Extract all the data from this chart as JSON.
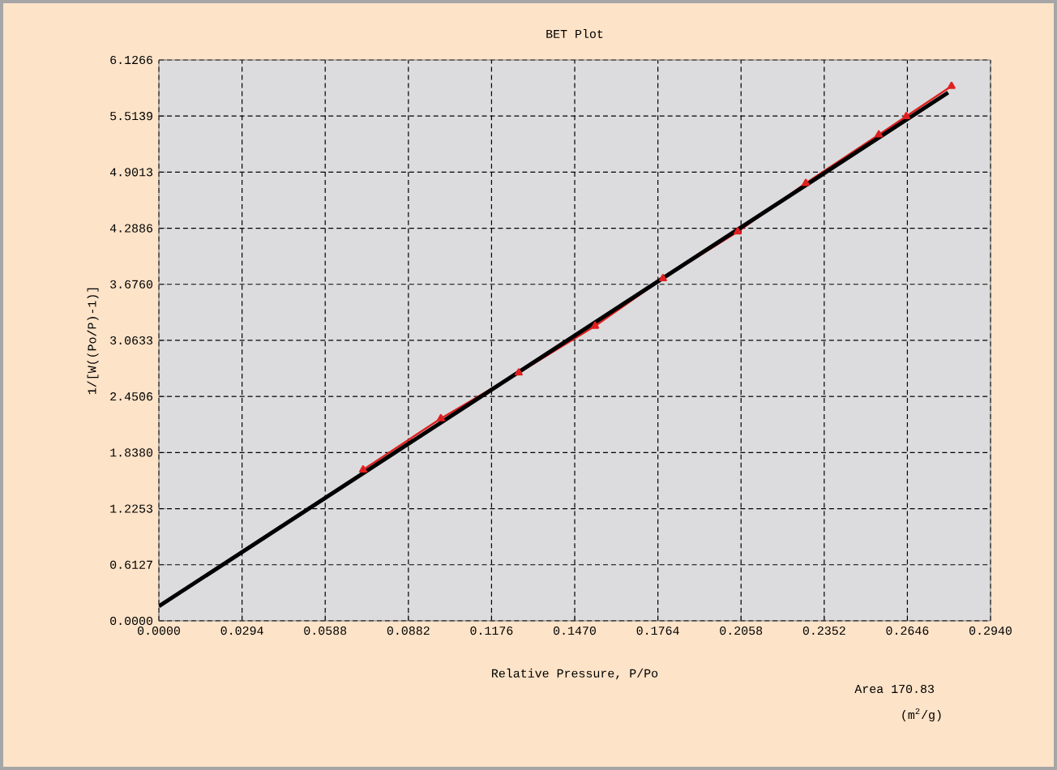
{
  "chart_data": {
    "type": "line",
    "title": "BET Plot",
    "xlabel": "Relative Pressure, P/Po",
    "ylabel": "1/[W((Po/P)-1)]",
    "annotations": [
      "Area 170.83",
      "(m$^{2}$/g)"
    ],
    "xlim": [
      0,
      0.294
    ],
    "ylim": [
      0,
      6.1266
    ],
    "xticks": [
      {
        "value": 0,
        "label": "0.0000"
      },
      0.0294,
      0.0588,
      0.0882,
      0.1176,
      {
        "value": 0.147,
        "label": "0.1470"
      },
      0.1764,
      0.2058,
      0.2352,
      0.2646,
      {
        "value": 0.294,
        "label": "0.2940"
      }
    ],
    "yticks": [
      {
        "value": 0,
        "label": "0.0000"
      },
      0.6127,
      1.2253,
      {
        "value": 1.838,
        "label": "1.8380"
      },
      2.4506,
      3.0633,
      {
        "value": 3.676,
        "label": "3.6760"
      },
      4.2886,
      4.9013,
      5.5139,
      6.1266
    ],
    "grid": true,
    "marker": "triangle",
    "series": [
      {
        "color": "#e02020",
        "x": [
          0.0722,
          0.0997,
          0.1272,
          0.1542,
          0.1782,
          0.2046,
          0.2287,
          0.2545,
          0.2642,
          0.2802
        ],
        "values": [
          1.65,
          2.21,
          2.71,
          3.22,
          3.74,
          4.25,
          4.78,
          5.31,
          5.51,
          5.84
        ]
      },
      {
        "color": "#000000",
        "marker": "none",
        "x": [
          0,
          0.279
        ],
        "values": [
          0.16,
          5.77
        ]
      }
    ]
  }
}
